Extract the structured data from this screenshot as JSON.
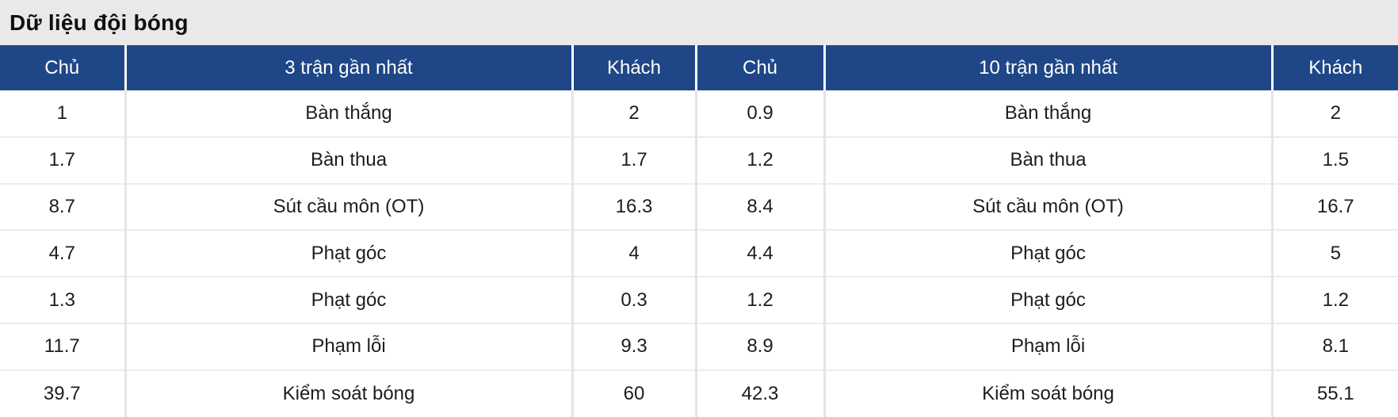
{
  "widget": {
    "title": "Dữ liệu đội bóng"
  },
  "table": {
    "headers": [
      "Chủ",
      "3 trận gần nhất",
      "Khách",
      "Chủ",
      "10 trận gần nhất",
      "Khách"
    ],
    "rows": [
      [
        "1",
        "Bàn thắng",
        "2",
        "0.9",
        "Bàn thắng",
        "2"
      ],
      [
        "1.7",
        "Bàn thua",
        "1.7",
        "1.2",
        "Bàn thua",
        "1.5"
      ],
      [
        "8.7",
        "Sút cầu môn (OT)",
        "16.3",
        "8.4",
        "Sút cầu môn (OT)",
        "16.7"
      ],
      [
        "4.7",
        "Phạt góc",
        "4",
        "4.4",
        "Phạt góc",
        "5"
      ],
      [
        "1.3",
        "Phạt góc",
        "0.3",
        "1.2",
        "Phạt góc",
        "1.2"
      ],
      [
        "11.7",
        "Phạm lỗi",
        "9.3",
        "8.9",
        "Phạm lỗi",
        "8.1"
      ],
      [
        "39.7",
        "Kiểm soát bóng",
        "60",
        "42.3",
        "Kiểm soát bóng",
        "55.1"
      ]
    ]
  },
  "colors": {
    "header_bg": "#1f4788",
    "header_text": "#ffffff",
    "title_bar_bg": "#e9e9e9",
    "title_text": "#0f0f0f",
    "body_text": "#1d1d1d",
    "grid_line": "#e5e5e5",
    "row_line": "#ececec"
  }
}
